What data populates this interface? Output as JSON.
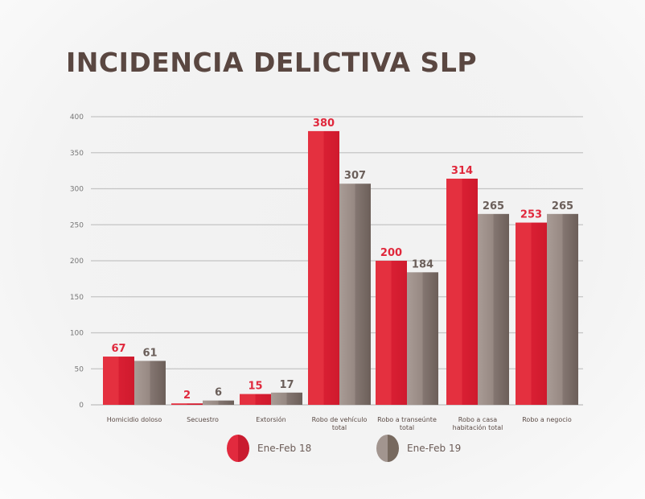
{
  "chart_data": {
    "type": "bar",
    "title": "INCIDENCIA DELICTIVA SLP",
    "categories": [
      "Homicidio doloso",
      "Secuestro",
      "Extorsión",
      "Robo de vehículo total",
      "Robo a transeúnte total",
      "Robo a casa habitación total",
      "Robo a negocio"
    ],
    "series": [
      {
        "name": "Ene-Feb 18",
        "values": [
          67,
          2,
          15,
          380,
          200,
          314,
          253
        ],
        "color": "#e0283c"
      },
      {
        "name": "Ene-Feb 19",
        "values": [
          61,
          6,
          17,
          307,
          184,
          265,
          265
        ],
        "color": "#8c7f7b"
      }
    ],
    "yticks": [
      0,
      50,
      100,
      150,
      200,
      250,
      300,
      350,
      400
    ],
    "ylim": [
      0,
      400
    ],
    "grid": true,
    "legend": "bottom",
    "xlabel": "",
    "ylabel": ""
  }
}
